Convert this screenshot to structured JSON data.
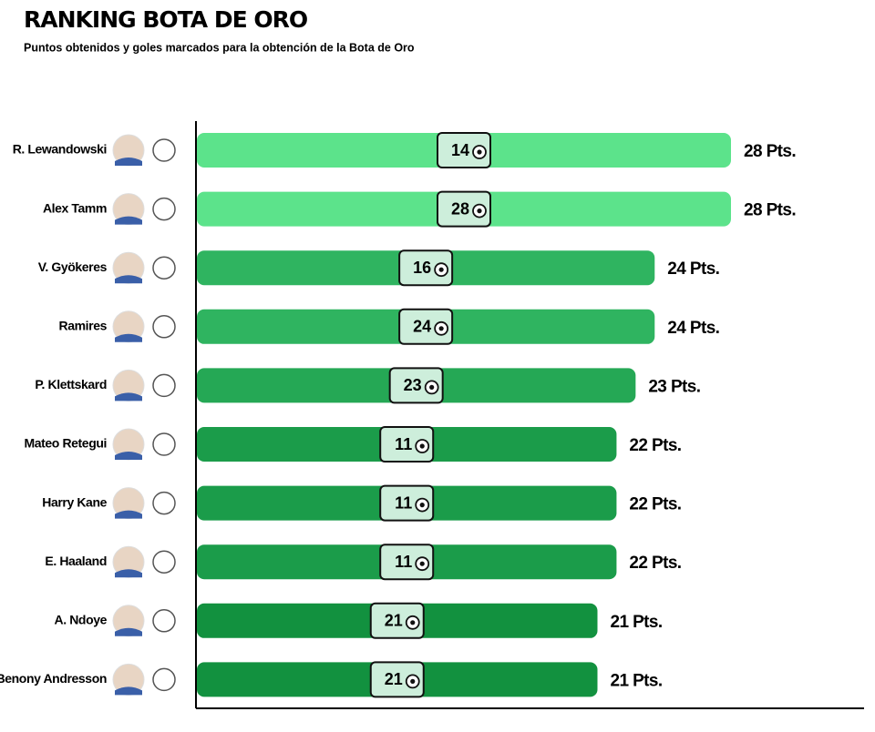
{
  "chart_data": {
    "type": "bar",
    "title": "RANKING BOTA DE ORO",
    "subtitle": "Puntos obtenidos y goles marcados para la obtención de la Bota de Oro",
    "categories": [
      "R. Lewandowski",
      "Alex Tamm",
      "V. Gyökeres",
      "Ramires",
      "P. Klettskard",
      "Mateo Retegui",
      "Harry Kane",
      "E. Haaland",
      "A. Ndoye",
      "Benony Andresson"
    ],
    "values": [
      28,
      28,
      24,
      24,
      23,
      22,
      22,
      22,
      21,
      21
    ],
    "value_labels": [
      "28 Pts.",
      "28 Pts.",
      "24 Pts.",
      "24 Pts.",
      "23 Pts.",
      "22 Pts.",
      "22 Pts.",
      "22 Pts.",
      "21 Pts.",
      "21 Pts."
    ],
    "goals": [
      14,
      28,
      16,
      24,
      23,
      11,
      11,
      11,
      21,
      21
    ],
    "colors": [
      "#5ce38b",
      "#5ce38b",
      "#2fb460",
      "#2fb460",
      "#25a855",
      "#1b9c4a",
      "#1b9c4a",
      "#1b9c4a",
      "#12913f",
      "#12913f"
    ]
  }
}
